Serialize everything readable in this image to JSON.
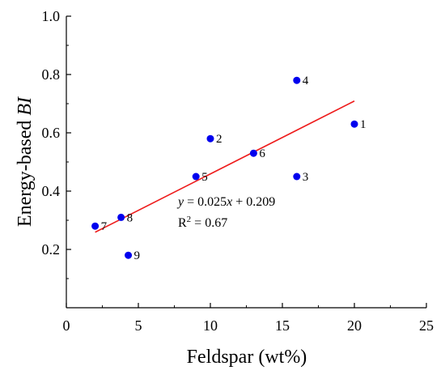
{
  "chart_data": {
    "type": "scatter",
    "xlabel": "Feldspar (wt%)",
    "ylabel_prefix": "Energy-based ",
    "ylabel_italic": "BI",
    "xlim": [
      0,
      25
    ],
    "ylim": [
      0,
      1.0
    ],
    "xticks": [
      0,
      5,
      10,
      15,
      20,
      25
    ],
    "yticks": [
      0.2,
      0.4,
      0.6,
      0.8,
      1.0
    ],
    "xtick_labels": [
      "0",
      "5",
      "10",
      "15",
      "20",
      "25"
    ],
    "ytick_labels": [
      "0.2",
      "0.4",
      "0.6",
      "0.8",
      "1.0"
    ],
    "grid": false,
    "point_color": "#0000ee",
    "fit_color": "#ee1c1c",
    "points": [
      {
        "label": "1",
        "x": 20,
        "y": 0.63
      },
      {
        "label": "2",
        "x": 10,
        "y": 0.58
      },
      {
        "label": "3",
        "x": 16,
        "y": 0.45
      },
      {
        "label": "4",
        "x": 16,
        "y": 0.78
      },
      {
        "label": "5",
        "x": 9,
        "y": 0.45
      },
      {
        "label": "6",
        "x": 13,
        "y": 0.53
      },
      {
        "label": "7",
        "x": 2,
        "y": 0.28
      },
      {
        "label": "8",
        "x": 3.8,
        "y": 0.31
      },
      {
        "label": "9",
        "x": 4.3,
        "y": 0.18
      }
    ],
    "fit": {
      "slope": 0.025,
      "intercept": 0.209,
      "x_range": [
        2,
        20
      ],
      "equation": {
        "y": "y",
        "eq_mid": " = 0.025",
        "x": "x",
        "eq_end": " + 0.209"
      },
      "r2": {
        "r": "R",
        "sup": "2",
        "rest": " = 0.67"
      }
    }
  }
}
